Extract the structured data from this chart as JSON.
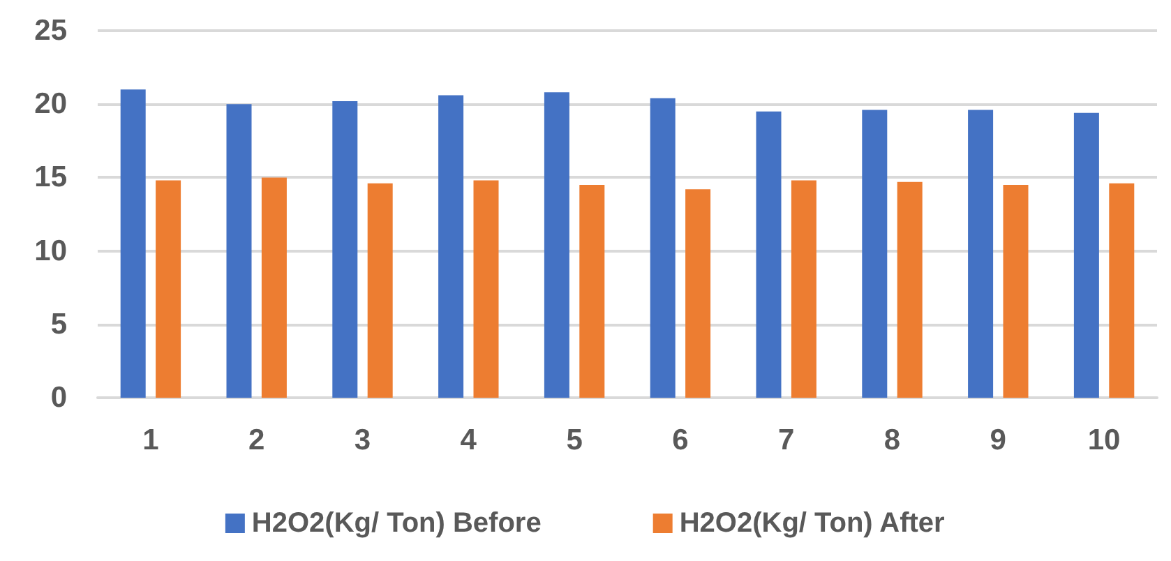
{
  "chart_data": {
    "type": "bar",
    "categories": [
      "1",
      "2",
      "3",
      "4",
      "5",
      "6",
      "7",
      "8",
      "9",
      "10"
    ],
    "series": [
      {
        "name": "H2O2(Kg/ Ton) Before",
        "color": "#4472c4",
        "values": [
          21.0,
          20.0,
          20.2,
          20.6,
          20.8,
          20.4,
          19.5,
          19.6,
          19.6,
          19.4
        ]
      },
      {
        "name": "H2O2(Kg/ Ton) After",
        "color": "#ed7d31",
        "values": [
          14.8,
          15.0,
          14.6,
          14.8,
          14.5,
          14.2,
          14.8,
          14.7,
          14.5,
          14.6
        ]
      }
    ],
    "ylim": [
      0,
      25
    ],
    "yticks": [
      0,
      5,
      10,
      15,
      20,
      25
    ],
    "grid": "y",
    "legend": "bottom"
  }
}
